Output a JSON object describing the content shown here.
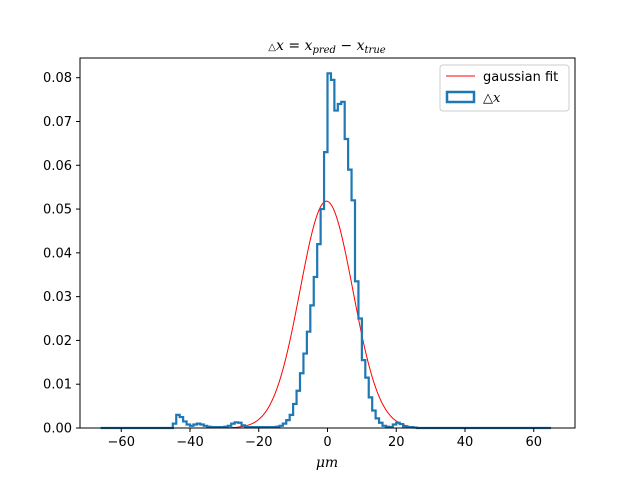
{
  "chart_data": {
    "type": "line",
    "title": "△x = x_pred − x_true",
    "title_parts": {
      "delta": "△",
      "x": "x",
      "eq": " = ",
      "x1": "x",
      "sub1": "pred",
      "minus": " − ",
      "x2": "x",
      "sub2": "true"
    },
    "xlabel": "μm",
    "ylabel": "",
    "xlim": [
      -72,
      72
    ],
    "ylim": [
      0,
      0.0845
    ],
    "xticks": [
      -60,
      -40,
      -20,
      0,
      20,
      40,
      60
    ],
    "xtick_labels": [
      "−60",
      "−40",
      "−20",
      "0",
      "20",
      "40",
      "60"
    ],
    "yticks": [
      0.0,
      0.01,
      0.02,
      0.03,
      0.04,
      0.05,
      0.06,
      0.07,
      0.08
    ],
    "ytick_labels": [
      "0.00",
      "0.01",
      "0.02",
      "0.03",
      "0.04",
      "0.05",
      "0.06",
      "0.07",
      "0.08"
    ],
    "legend_position": "top-right",
    "series": [
      {
        "name": "gaussian fit",
        "kind": "line",
        "color": "#ff0000",
        "gaussian": {
          "amplitude": 0.0518,
          "mean": -0.3,
          "sigma": 7.7,
          "x_range": [
            -66,
            65
          ]
        }
      },
      {
        "name": "△x",
        "kind": "step-histogram",
        "color": "#1f77b4",
        "bin_edges_range": [
          -66,
          65
        ],
        "bin_width": 1,
        "points": [
          [
            -66,
            0.0
          ],
          [
            -46,
            0.0
          ],
          [
            -45,
            0.001
          ],
          [
            -44,
            0.003
          ],
          [
            -43,
            0.0025
          ],
          [
            -42,
            0.0015
          ],
          [
            -41,
            0.0008
          ],
          [
            -40,
            0.0005
          ],
          [
            -39,
            0.0008
          ],
          [
            -38,
            0.001
          ],
          [
            -37,
            0.0008
          ],
          [
            -36,
            0.0005
          ],
          [
            -35,
            0.0003
          ],
          [
            -34,
            0.0002
          ],
          [
            -31,
            0.0002
          ],
          [
            -30,
            0.0003
          ],
          [
            -29,
            0.0005
          ],
          [
            -28,
            0.001
          ],
          [
            -27,
            0.0013
          ],
          [
            -26,
            0.0012
          ],
          [
            -25,
            0.0006
          ],
          [
            -24,
            0.0002
          ],
          [
            -17,
            0.0002
          ],
          [
            -15,
            0.0003
          ],
          [
            -14,
            0.0005
          ],
          [
            -13,
            0.001
          ],
          [
            -12,
            0.0018
          ],
          [
            -11,
            0.003
          ],
          [
            -10,
            0.0055
          ],
          [
            -9,
            0.0085
          ],
          [
            -8,
            0.0125
          ],
          [
            -7,
            0.017
          ],
          [
            -6,
            0.022
          ],
          [
            -5,
            0.028
          ],
          [
            -4,
            0.0345
          ],
          [
            -3,
            0.042
          ],
          [
            -2,
            0.05
          ],
          [
            -1,
            0.063
          ],
          [
            0,
            0.081
          ],
          [
            1,
            0.0795
          ],
          [
            2,
            0.0725
          ],
          [
            3,
            0.074
          ],
          [
            4,
            0.0745
          ],
          [
            5,
            0.066
          ],
          [
            6,
            0.059
          ],
          [
            7,
            0.052
          ],
          [
            8,
            0.0335
          ],
          [
            9,
            0.025
          ],
          [
            10,
            0.0155
          ],
          [
            11,
            0.0115
          ],
          [
            12,
            0.007
          ],
          [
            13,
            0.004
          ],
          [
            14,
            0.0022
          ],
          [
            15,
            0.0012
          ],
          [
            16,
            0.0005
          ],
          [
            17,
            0.0003
          ],
          [
            18,
            0.0002
          ],
          [
            19,
            0.0008
          ],
          [
            20,
            0.0012
          ],
          [
            21,
            0.0009
          ],
          [
            22,
            0.0004
          ],
          [
            23,
            0.0002
          ],
          [
            25,
            0.0001
          ],
          [
            26,
            0.0
          ]
        ]
      }
    ]
  }
}
